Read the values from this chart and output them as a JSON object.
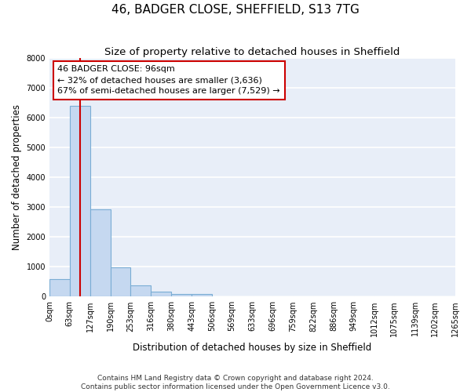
{
  "title": "46, BADGER CLOSE, SHEFFIELD, S13 7TG",
  "subtitle": "Size of property relative to detached houses in Sheffield",
  "xlabel": "Distribution of detached houses by size in Sheffield",
  "ylabel": "Number of detached properties",
  "footer_line1": "Contains HM Land Registry data © Crown copyright and database right 2024.",
  "footer_line2": "Contains public sector information licensed under the Open Government Licence v3.0.",
  "bin_edges": [
    0,
    63,
    127,
    190,
    253,
    316,
    380,
    443,
    506,
    569,
    633,
    696,
    759,
    822,
    886,
    949,
    1012,
    1075,
    1139,
    1202,
    1265
  ],
  "bar_heights": [
    580,
    6390,
    2920,
    990,
    380,
    175,
    100,
    75,
    0,
    0,
    0,
    0,
    0,
    0,
    0,
    0,
    0,
    0,
    0,
    0
  ],
  "bar_color": "#c5d8f0",
  "bar_edge_color": "#7aadd4",
  "property_size": 96,
  "annotation_line1": "46 BADGER CLOSE: 96sqm",
  "annotation_line2": "← 32% of detached houses are smaller (3,636)",
  "annotation_line3": "67% of semi-detached houses are larger (7,529) →",
  "vline_color": "#cc0000",
  "annotation_box_edgecolor": "#cc0000",
  "annotation_box_facecolor": "#ffffff",
  "ylim": [
    0,
    8000
  ],
  "yticks": [
    0,
    1000,
    2000,
    3000,
    4000,
    5000,
    6000,
    7000,
    8000
  ],
  "bg_color": "#e8eef8",
  "grid_color": "#ffffff",
  "title_fontsize": 11,
  "subtitle_fontsize": 9.5,
  "tick_fontsize": 7,
  "ylabel_fontsize": 8.5,
  "xlabel_fontsize": 8.5,
  "annotation_fontsize": 8,
  "footer_fontsize": 6.5
}
